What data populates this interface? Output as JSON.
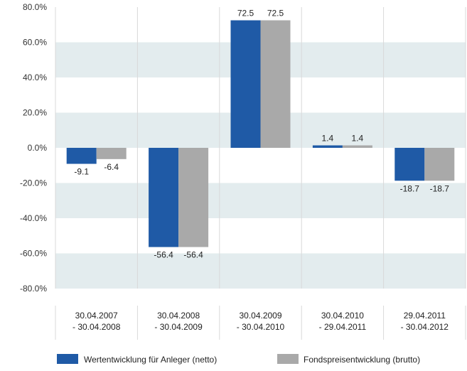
{
  "chart_data": {
    "type": "bar",
    "categories": [
      [
        "30.04.2007",
        "- 30.04.2008"
      ],
      [
        "30.04.2008",
        "- 30.04.2009"
      ],
      [
        "30.04.2009",
        "- 30.04.2010"
      ],
      [
        "30.04.2010",
        "- 29.04.2011"
      ],
      [
        "29.04.2011",
        "- 30.04.2012"
      ]
    ],
    "series": [
      {
        "name": "Wertentwicklung für Anleger (netto)",
        "values": [
          -9.1,
          -56.4,
          72.5,
          1.4,
          -18.7
        ],
        "labels": [
          "-9.1",
          "-56.4",
          "72.5",
          "1.4",
          "-18.7"
        ],
        "color": "#1f5aa6"
      },
      {
        "name": "Fondspreisentwicklung (brutto)",
        "values": [
          -6.4,
          -56.4,
          72.5,
          1.4,
          -18.7
        ],
        "labels": [
          "-6.4",
          "-56.4",
          "72.5",
          "1.4",
          "-18.7"
        ],
        "color": "#a9a9a9"
      }
    ],
    "ylim": [
      -80,
      80
    ],
    "yticks": [
      80,
      60,
      40,
      20,
      0,
      -20,
      -40,
      -60,
      -80
    ],
    "ytick_labels": [
      "80.0%",
      "60.0%",
      "40.0%",
      "20.0%",
      "0.0%",
      "-20.0%",
      "-40.0%",
      "-60.0%",
      "-80.0%"
    ],
    "band_color": "#e3ecee",
    "grid": true,
    "legend_position": "bottom"
  }
}
